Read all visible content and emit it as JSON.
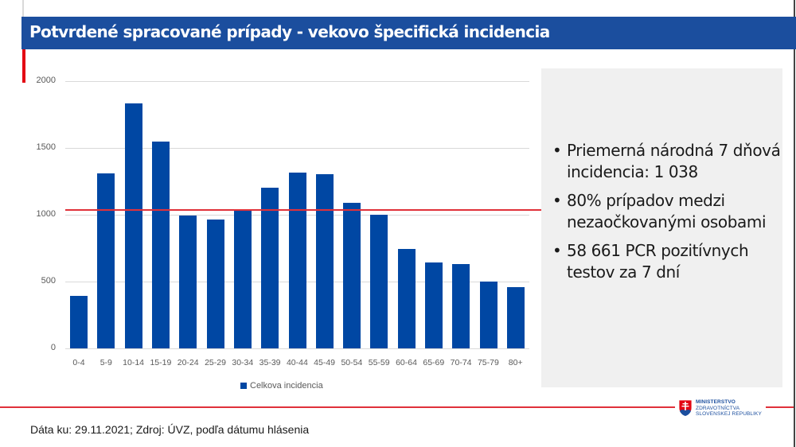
{
  "header": {
    "title": "Potvrdené spracované prípady - vekovo špecifická incidencia"
  },
  "chart_data": {
    "type": "bar",
    "title": "",
    "xlabel": "",
    "ylabel": "",
    "ylim": [
      0,
      2000
    ],
    "yticks": [
      0,
      500,
      1000,
      1500,
      2000
    ],
    "grid": true,
    "legend_position": "bottom",
    "categories": [
      "0-4",
      "5-9",
      "10-14",
      "15-19",
      "20-24",
      "25-29",
      "30-34",
      "35-39",
      "40-44",
      "45-49",
      "50-54",
      "55-59",
      "60-64",
      "65-69",
      "70-74",
      "75-79",
      "80+"
    ],
    "series": [
      {
        "name": "Celkova incidencia",
        "color": "#0047a3",
        "values": [
          395,
          1312,
          1835,
          1545,
          996,
          966,
          1034,
          1203,
          1318,
          1306,
          1089,
          1000,
          742,
          646,
          632,
          503,
          460
        ]
      }
    ],
    "reference_line": {
      "label": "Priemerná národná 7 dňová incidencia",
      "value": 1038,
      "color": "#e0313a"
    }
  },
  "legend": {
    "label": "Celkova incidencia"
  },
  "info_panel": {
    "items": [
      "Priemerná národná 7 dňová incidencia: 1 038",
      "80% prípadov medzi nezaočkovanými osobami",
      "58 661 PCR pozitívnych testov za 7 dní"
    ]
  },
  "footer": {
    "source": "Dáta ku: 29.11.2021; Zdroj: ÚVZ, podľa dátumu hlásenia"
  },
  "logo": {
    "line1": "MINISTERSTVO",
    "line2": "ZDRAVOTNÍCTVA",
    "line3": "SLOVENSKEJ REPUBLIKY",
    "icon": "slovak-coat-of-arms-icon"
  },
  "colors": {
    "header_blue": "#1b4e9e",
    "bar_blue": "#0047a3",
    "accent_red": "#e30613",
    "panel_grey": "#f0f0f0"
  }
}
